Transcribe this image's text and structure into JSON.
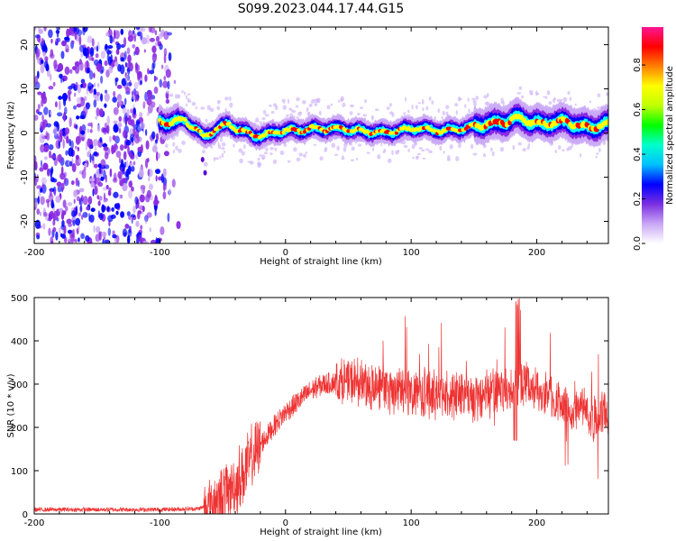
{
  "title": "S099.2023.044.17.44.G15",
  "chart_data": [
    {
      "type": "heatmap",
      "panel": "spectrogram",
      "xlabel": "Height of straight line (km)",
      "ylabel": "Frequency (Hz)",
      "xlim": [
        -200,
        257
      ],
      "ylim": [
        -25,
        24
      ],
      "xticks": [
        -200,
        -100,
        0,
        100,
        200
      ],
      "yticks": [
        -20,
        -10,
        0,
        10,
        20
      ],
      "xtick_labels": [
        "-200",
        "-100",
        "0",
        "100",
        "200"
      ],
      "ytick_labels": [
        "-20",
        "-10",
        "0",
        "10",
        "20"
      ],
      "colorbar": {
        "label": "Normalized spectral amplitude",
        "range": [
          0,
          0.97
        ],
        "ticks": [
          0.0,
          0.2,
          0.4,
          0.6,
          0.8
        ],
        "tick_labels": [
          "0.0",
          "0.2",
          "0.4",
          "0.6",
          "0.8"
        ],
        "colors": [
          "#ffffff",
          "#c9a6f5",
          "#8a2be2",
          "#0000ff",
          "#00ffff",
          "#00ff00",
          "#ffff00",
          "#ff0000",
          "#ff1493"
        ]
      },
      "noise_region_x": [
        -200,
        -92
      ],
      "ridge": {
        "x": [
          -100,
          -90,
          -80,
          -72,
          -65,
          -55,
          -45,
          -35,
          -25,
          -15,
          -5,
          5,
          15,
          25,
          35,
          45,
          55,
          65,
          75,
          85,
          95,
          105,
          115,
          125,
          135,
          145,
          155,
          165,
          175,
          185,
          195,
          205,
          215,
          225,
          235,
          245,
          255
        ],
        "y": [
          2.5,
          2.5,
          3.0,
          1.0,
          -1.0,
          1.0,
          2.0,
          0.5,
          -0.5,
          -0.5,
          0.5,
          0.5,
          0.8,
          1.0,
          1.0,
          1.0,
          0.5,
          0.5,
          0.0,
          0.3,
          0.8,
          1.2,
          0.8,
          0.5,
          0.8,
          1.2,
          1.8,
          2.2,
          2.5,
          3.5,
          2.5,
          2.0,
          2.5,
          2.5,
          1.5,
          1.2,
          2.0
        ]
      },
      "grid": false
    },
    {
      "type": "line",
      "panel": "snr",
      "xlabel": "Height of straight line (km)",
      "ylabel": "SNR (10 * v/v)",
      "xlim": [
        -200,
        257
      ],
      "ylim": [
        0,
        500
      ],
      "xticks": [
        -200,
        -100,
        0,
        100,
        200
      ],
      "yticks": [
        0,
        100,
        200,
        300,
        400,
        500
      ],
      "xtick_labels": [
        "-200",
        "-100",
        "0",
        "100",
        "200"
      ],
      "ytick_labels": [
        "0",
        "100",
        "200",
        "300",
        "400",
        "500"
      ],
      "color": "#ee3333",
      "envelope": {
        "x": [
          -200,
          -150,
          -100,
          -70,
          -60,
          -50,
          -40,
          -30,
          -20,
          -10,
          0,
          10,
          20,
          30,
          40,
          50,
          60,
          80,
          100,
          120,
          150,
          170,
          190,
          200,
          210,
          220,
          235,
          245,
          257
        ],
        "y": [
          10,
          10,
          10,
          12,
          20,
          40,
          70,
          110,
          160,
          200,
          235,
          260,
          285,
          300,
          305,
          305,
          300,
          290,
          280,
          275,
          270,
          280,
          300,
          290,
          270,
          250,
          240,
          220,
          235
        ]
      },
      "grid": false
    }
  ]
}
